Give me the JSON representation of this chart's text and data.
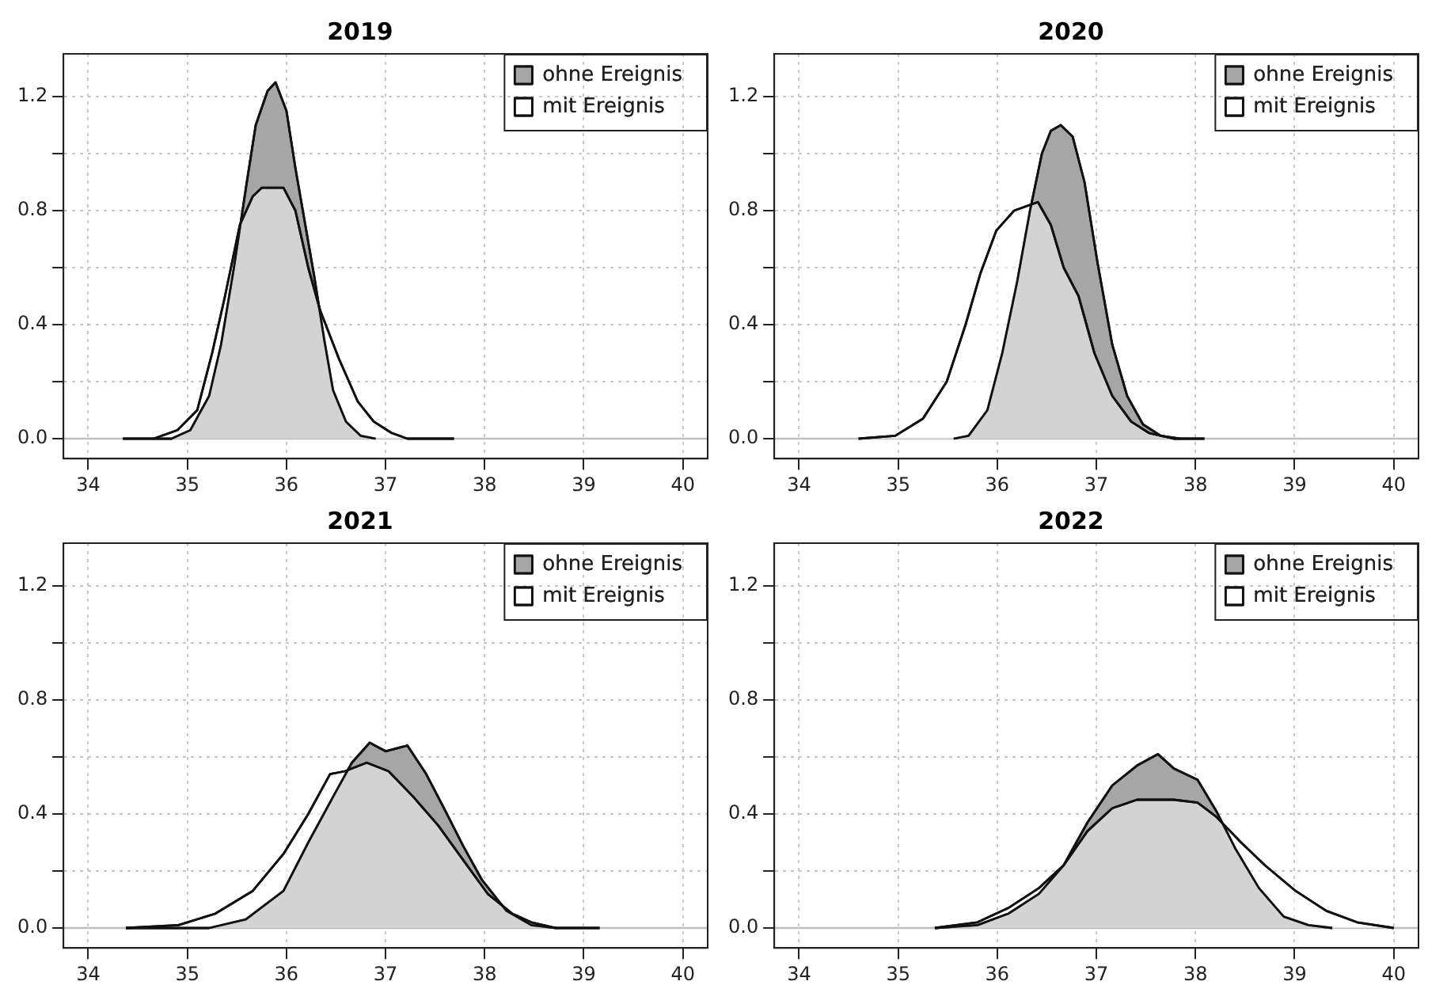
{
  "chart_data": [
    {
      "type": "area",
      "title": "2019",
      "xlim": [
        33.75,
        40.25
      ],
      "xticks": [
        34,
        35,
        36,
        37,
        38,
        39,
        40
      ],
      "ylim": [
        -0.07,
        1.35
      ],
      "yticks": [
        {
          "value": 0,
          "label": "0.0"
        },
        {
          "value": 0.2,
          "label": null
        },
        {
          "value": 0.4,
          "label": "0.4"
        },
        {
          "value": 0.6,
          "label": null
        },
        {
          "value": 0.8,
          "label": "0.8"
        },
        {
          "value": 1.0,
          "label": null
        },
        {
          "value": 1.2,
          "label": "1.2"
        }
      ],
      "grid": true,
      "legend": "top right",
      "marker": "none",
      "ref_lines": [
        {
          "axis": "y",
          "value": 0,
          "color": "#bebebe"
        }
      ],
      "series": [
        {
          "name": "ohne Ereignis",
          "color": "#a6a6a6",
          "x": [
            34.35,
            34.84,
            35.03,
            35.22,
            35.34,
            35.47,
            35.6,
            35.69,
            35.81,
            35.89,
            36.0,
            36.09,
            36.19,
            36.28,
            36.38,
            36.47,
            36.6,
            36.75,
            36.9
          ],
          "values": [
            0,
            0,
            0.03,
            0.15,
            0.33,
            0.6,
            0.9,
            1.1,
            1.22,
            1.25,
            1.15,
            0.95,
            0.75,
            0.57,
            0.35,
            0.17,
            0.06,
            0.01,
            0
          ]
        },
        {
          "name": "mit Ereignis",
          "color": "#ffffff",
          "x": [
            34.66,
            34.9,
            35.1,
            35.25,
            35.38,
            35.53,
            35.66,
            35.75,
            35.97,
            36.09,
            36.22,
            36.34,
            36.53,
            36.72,
            36.88,
            37.06,
            37.22,
            37.69
          ],
          "values": [
            0,
            0.03,
            0.1,
            0.3,
            0.5,
            0.75,
            0.85,
            0.88,
            0.88,
            0.8,
            0.6,
            0.45,
            0.28,
            0.13,
            0.06,
            0.02,
            0,
            0
          ]
        }
      ]
    },
    {
      "type": "area",
      "title": "2020",
      "xlim": [
        33.75,
        40.25
      ],
      "xticks": [
        34,
        35,
        36,
        37,
        38,
        39,
        40
      ],
      "ylim": [
        -0.07,
        1.35
      ],
      "yticks": [
        {
          "value": 0,
          "label": "0.0"
        },
        {
          "value": 0.2,
          "label": null
        },
        {
          "value": 0.4,
          "label": "0.4"
        },
        {
          "value": 0.6,
          "label": null
        },
        {
          "value": 0.8,
          "label": "0.8"
        },
        {
          "value": 1.0,
          "label": null
        },
        {
          "value": 1.2,
          "label": "1.2"
        }
      ],
      "grid": true,
      "legend": "top right",
      "marker": "none",
      "ref_lines": [
        {
          "axis": "y",
          "value": 0,
          "color": "#bebebe"
        }
      ],
      "series": [
        {
          "name": "ohne Ereignis",
          "color": "#a6a6a6",
          "x": [
            35.56,
            35.71,
            35.9,
            36.05,
            36.2,
            36.33,
            36.45,
            36.54,
            36.64,
            36.76,
            36.88,
            37.01,
            37.16,
            37.31,
            37.47,
            37.65,
            37.84
          ],
          "values": [
            0,
            0.01,
            0.1,
            0.3,
            0.55,
            0.8,
            1.0,
            1.08,
            1.1,
            1.06,
            0.9,
            0.62,
            0.33,
            0.15,
            0.05,
            0.01,
            0
          ]
        },
        {
          "name": "mit Ereignis",
          "color": "#ffffff",
          "x": [
            34.6,
            34.97,
            35.25,
            35.49,
            35.68,
            35.83,
            35.99,
            36.17,
            36.41,
            36.54,
            36.67,
            36.82,
            36.98,
            37.16,
            37.35,
            37.53,
            37.78,
            38.09
          ],
          "values": [
            0,
            0.01,
            0.07,
            0.2,
            0.4,
            0.58,
            0.73,
            0.8,
            0.83,
            0.75,
            0.6,
            0.5,
            0.3,
            0.15,
            0.06,
            0.02,
            0,
            0
          ]
        }
      ]
    },
    {
      "type": "area",
      "title": "2021",
      "xlim": [
        33.75,
        40.25
      ],
      "xticks": [
        34,
        35,
        36,
        37,
        38,
        39,
        40
      ],
      "ylim": [
        -0.07,
        1.35
      ],
      "yticks": [
        {
          "value": 0,
          "label": "0.0"
        },
        {
          "value": 0.2,
          "label": null
        },
        {
          "value": 0.4,
          "label": "0.4"
        },
        {
          "value": 0.6,
          "label": null
        },
        {
          "value": 0.8,
          "label": "0.8"
        },
        {
          "value": 1.0,
          "label": null
        },
        {
          "value": 1.2,
          "label": "1.2"
        }
      ],
      "grid": true,
      "legend": "top right",
      "marker": "none",
      "ref_lines": [
        {
          "axis": "y",
          "value": 0,
          "color": "#bebebe"
        }
      ],
      "series": [
        {
          "name": "ohne Ereignis",
          "color": "#a6a6a6",
          "x": [
            34.38,
            35.22,
            35.59,
            35.97,
            36.22,
            36.47,
            36.66,
            36.84,
            37.0,
            37.22,
            37.41,
            37.59,
            37.78,
            37.97,
            38.22,
            38.47,
            38.72,
            39.16
          ],
          "values": [
            0,
            0,
            0.03,
            0.13,
            0.3,
            0.46,
            0.58,
            0.65,
            0.62,
            0.64,
            0.54,
            0.42,
            0.29,
            0.17,
            0.06,
            0.01,
            0,
            0
          ]
        },
        {
          "name": "mit Ereignis",
          "color": "#ffffff",
          "x": [
            34.38,
            34.91,
            35.28,
            35.66,
            35.97,
            36.22,
            36.44,
            36.59,
            36.81,
            37.03,
            37.28,
            37.53,
            37.78,
            38.03,
            38.28,
            38.47,
            38.72
          ],
          "values": [
            0,
            0.01,
            0.05,
            0.13,
            0.26,
            0.4,
            0.54,
            0.55,
            0.58,
            0.55,
            0.46,
            0.36,
            0.24,
            0.12,
            0.05,
            0.02,
            0
          ]
        }
      ]
    },
    {
      "type": "area",
      "title": "2022",
      "xlim": [
        33.75,
        40.25
      ],
      "xticks": [
        34,
        35,
        36,
        37,
        38,
        39,
        40
      ],
      "ylim": [
        -0.07,
        1.35
      ],
      "yticks": [
        {
          "value": 0,
          "label": "0.0"
        },
        {
          "value": 0.2,
          "label": null
        },
        {
          "value": 0.4,
          "label": "0.4"
        },
        {
          "value": 0.6,
          "label": null
        },
        {
          "value": 0.8,
          "label": "0.8"
        },
        {
          "value": 1.0,
          "label": null
        },
        {
          "value": 1.2,
          "label": "1.2"
        }
      ],
      "grid": true,
      "legend": "top right",
      "marker": "none",
      "ref_lines": [
        {
          "axis": "y",
          "value": 0,
          "color": "#bebebe"
        }
      ],
      "series": [
        {
          "name": "ohne Ereignis",
          "color": "#a6a6a6",
          "x": [
            35.37,
            35.8,
            36.11,
            36.42,
            36.67,
            36.91,
            37.16,
            37.41,
            37.62,
            37.78,
            38.02,
            38.21,
            38.4,
            38.64,
            38.89,
            39.14,
            39.38
          ],
          "values": [
            0,
            0.01,
            0.05,
            0.12,
            0.22,
            0.37,
            0.5,
            0.57,
            0.61,
            0.56,
            0.52,
            0.41,
            0.28,
            0.14,
            0.04,
            0.01,
            0
          ]
        },
        {
          "name": "mit Ereignis",
          "color": "#ffffff",
          "x": [
            35.37,
            35.8,
            36.11,
            36.42,
            36.67,
            36.91,
            37.16,
            37.41,
            37.78,
            38.02,
            38.21,
            38.46,
            38.7,
            39.01,
            39.32,
            39.63,
            40.0
          ],
          "values": [
            0,
            0.02,
            0.07,
            0.14,
            0.22,
            0.34,
            0.42,
            0.45,
            0.45,
            0.44,
            0.39,
            0.3,
            0.22,
            0.13,
            0.06,
            0.02,
            0
          ]
        }
      ]
    }
  ]
}
